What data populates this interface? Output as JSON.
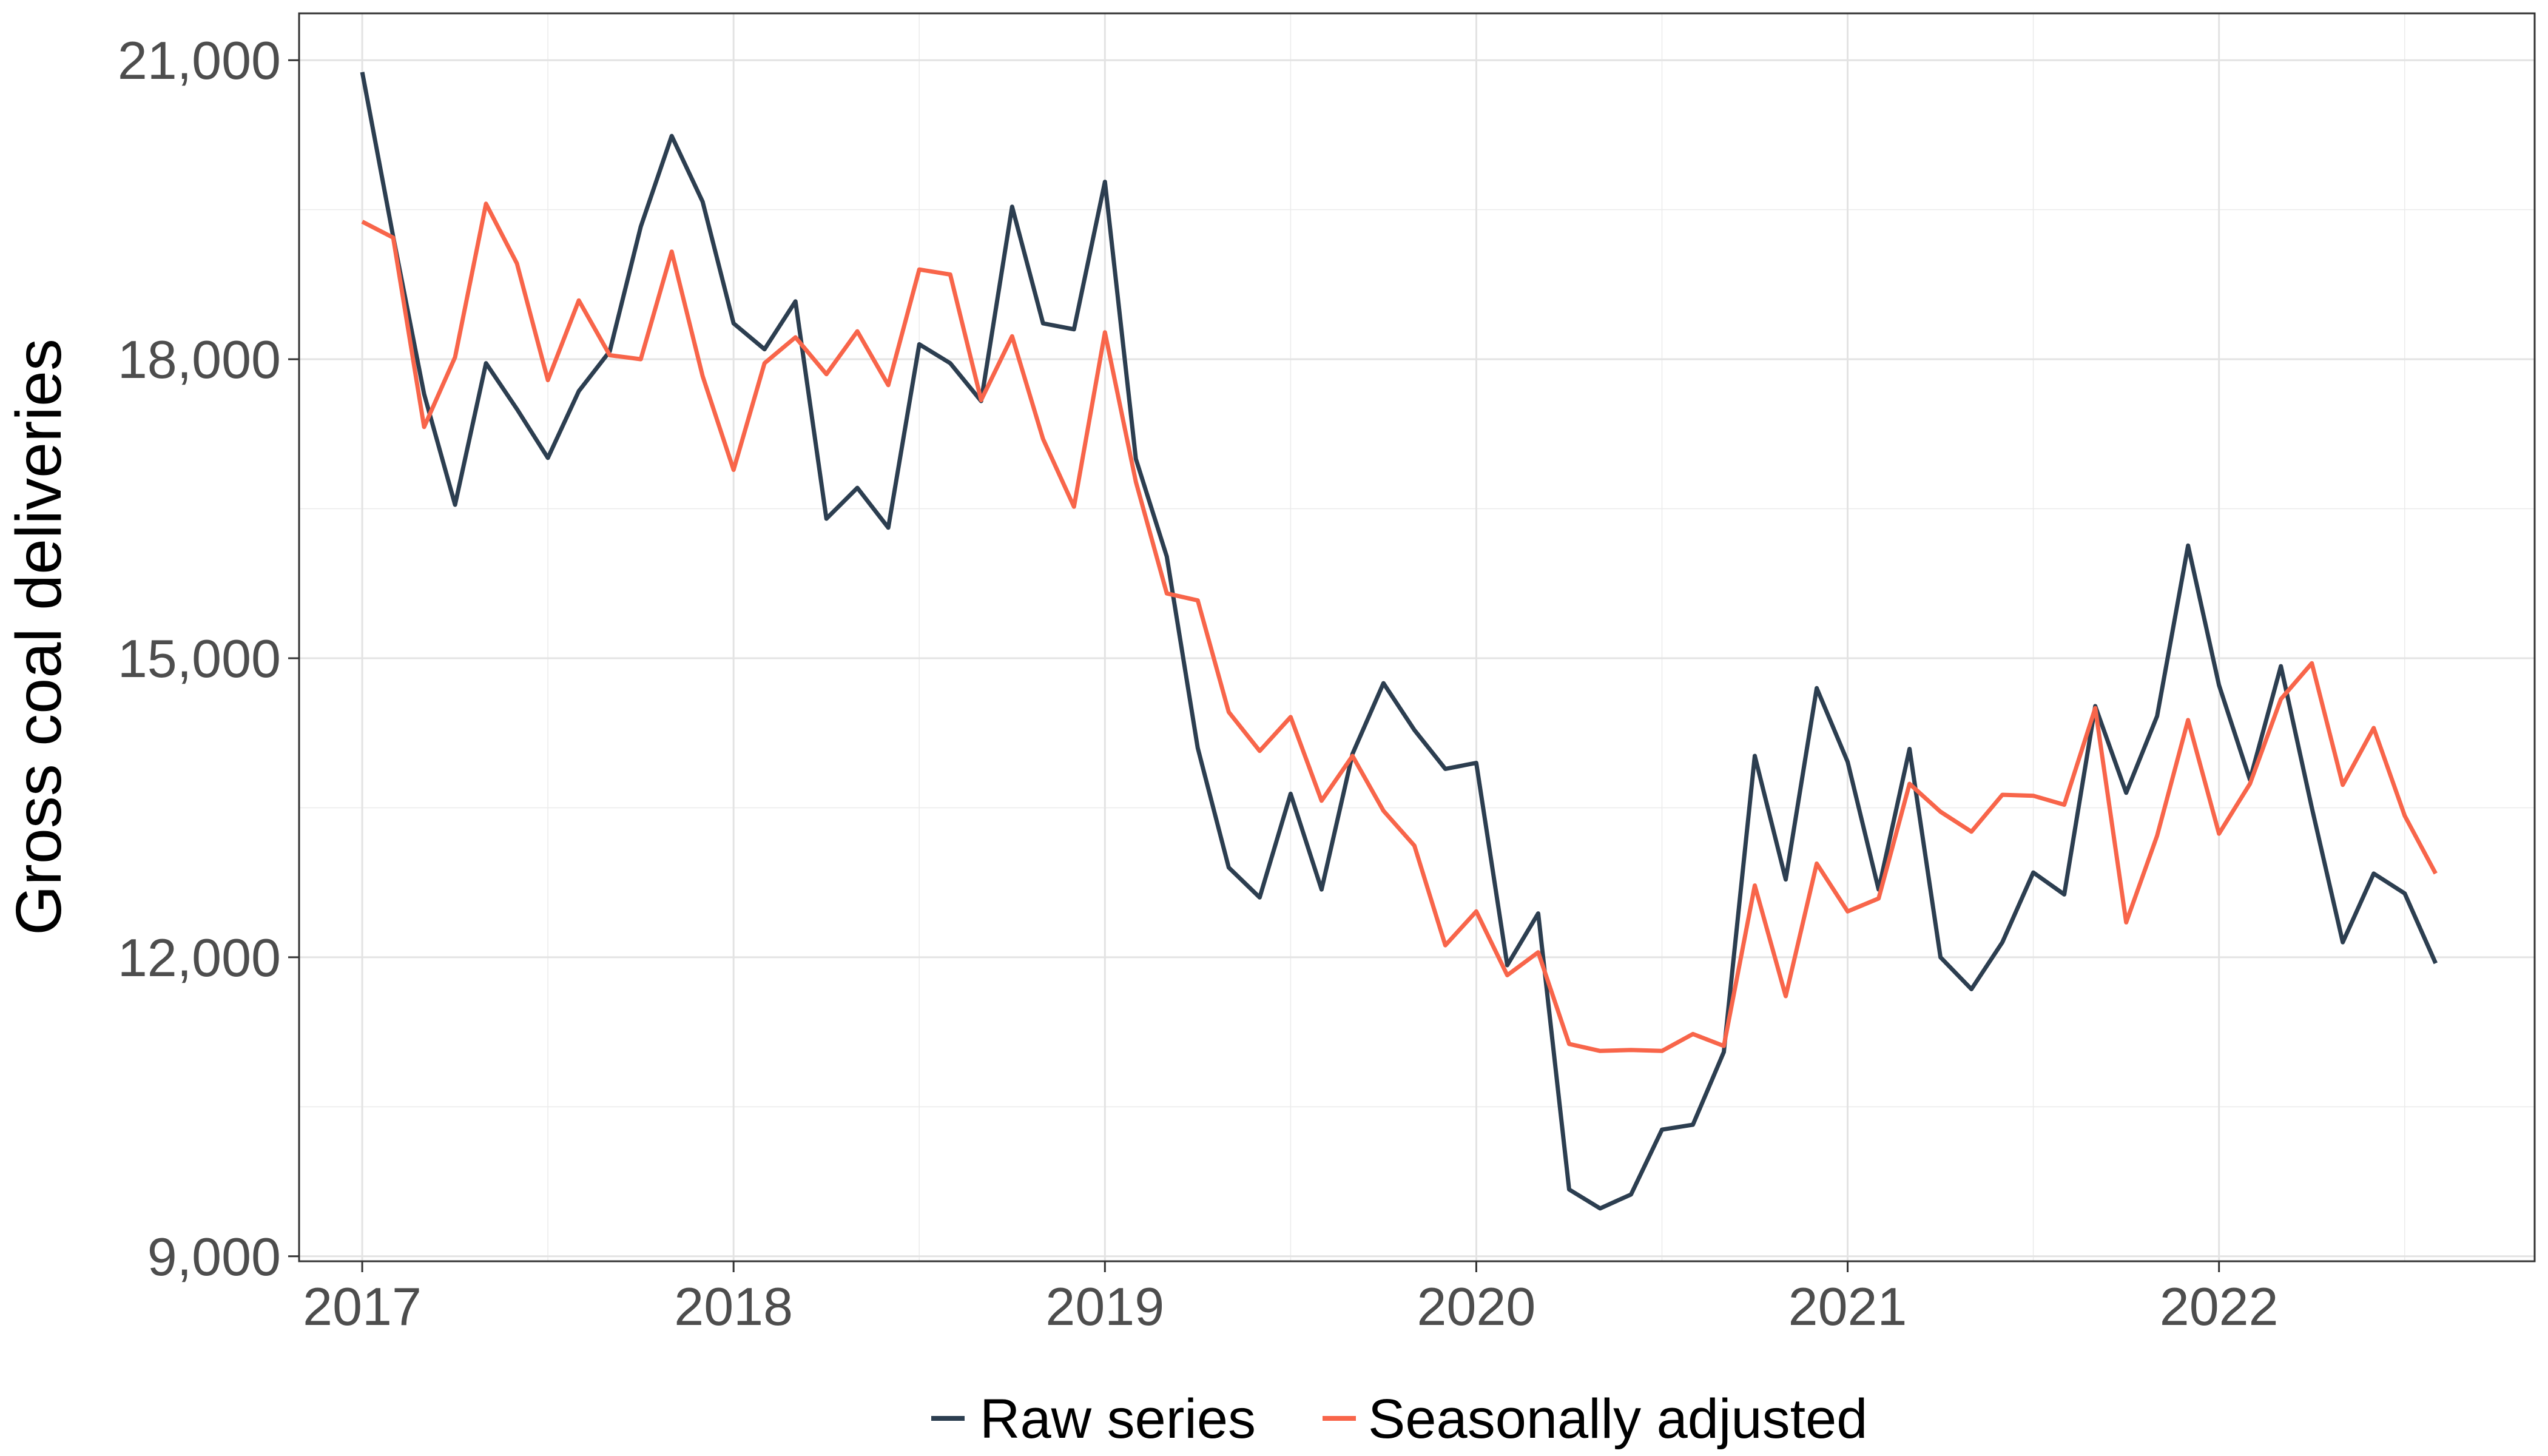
{
  "chart_data": {
    "type": "line",
    "xlabel": "",
    "ylabel": "Gross coal deliveries",
    "xlim": [
      2016.83,
      2022.85
    ],
    "ylim": [
      8950,
      21470
    ],
    "x_ticks": [
      2017,
      2018,
      2019,
      2020,
      2021,
      2022
    ],
    "x_tick_labels": [
      "2017",
      "2018",
      "2019",
      "2020",
      "2021",
      "2022"
    ],
    "y_ticks": [
      9000,
      12000,
      15000,
      18000,
      21000
    ],
    "y_tick_labels": [
      "9,000",
      "12,000",
      "15,000",
      "18,000",
      "21,000"
    ],
    "grid": true,
    "legend_position": "bottom",
    "x_dates": [
      "2017-01",
      "2017-02",
      "2017-03",
      "2017-04",
      "2017-05",
      "2017-06",
      "2017-07",
      "2017-08",
      "2017-09",
      "2017-10",
      "2017-11",
      "2017-12",
      "2018-01",
      "2018-02",
      "2018-03",
      "2018-04",
      "2018-05",
      "2018-06",
      "2018-07",
      "2018-08",
      "2018-09",
      "2018-10",
      "2018-11",
      "2018-12",
      "2019-01",
      "2019-02",
      "2019-03",
      "2019-04",
      "2019-05",
      "2019-06",
      "2019-07",
      "2019-08",
      "2019-09",
      "2019-10",
      "2019-11",
      "2019-12",
      "2020-01",
      "2020-02",
      "2020-03",
      "2020-04",
      "2020-05",
      "2020-06",
      "2020-07",
      "2020-08",
      "2020-09",
      "2020-10",
      "2020-11",
      "2020-12",
      "2021-01",
      "2021-02",
      "2021-03",
      "2021-04",
      "2021-05",
      "2021-06",
      "2021-07",
      "2021-08",
      "2021-09",
      "2021-10",
      "2021-11",
      "2021-12",
      "2022-01",
      "2022-02",
      "2022-03",
      "2022-04",
      "2022-05",
      "2022-06",
      "2022-07",
      "2022-08"
    ],
    "series": [
      {
        "name": "Raw series",
        "color": "#2c3e50",
        "values": [
          20880,
          19230,
          17650,
          16540,
          17960,
          17500,
          17010,
          17680,
          18080,
          19330,
          20240,
          19580,
          18360,
          18100,
          18580,
          16400,
          16710,
          16310,
          18150,
          17960,
          17580,
          19530,
          18360,
          18300,
          19780,
          17000,
          16020,
          14100,
          12900,
          12600,
          13640,
          12680,
          14040,
          14750,
          14280,
          13890,
          13950,
          11920,
          12440,
          9670,
          9480,
          9620,
          10270,
          10320,
          11050,
          14020,
          12780,
          14700,
          13960,
          12680,
          14090,
          12000,
          11680,
          12150,
          12850,
          12630,
          14520,
          13650,
          14420,
          16130,
          14730,
          13780,
          14920,
          13500,
          12150,
          12840,
          12640,
          11940
        ]
      },
      {
        "name": "Seasonally adjusted",
        "color": "#f8654a",
        "values": [
          19380,
          19220,
          17320,
          18020,
          19560,
          18960,
          17790,
          18590,
          18040,
          18000,
          19080,
          17830,
          16890,
          17960,
          18220,
          17850,
          18280,
          17740,
          18900,
          18850,
          17590,
          18230,
          17200,
          16520,
          18270,
          16770,
          15650,
          15580,
          14460,
          14070,
          14410,
          13570,
          14020,
          13470,
          13120,
          12120,
          12460,
          11820,
          12050,
          11130,
          11060,
          11070,
          11060,
          11230,
          11110,
          12720,
          11610,
          12940,
          12460,
          12590,
          13740,
          13460,
          13260,
          13630,
          13620,
          13530,
          14500,
          12350,
          13220,
          14380,
          13240,
          13740,
          14590,
          14950,
          13730,
          14300,
          13420,
          12840
        ]
      }
    ]
  }
}
